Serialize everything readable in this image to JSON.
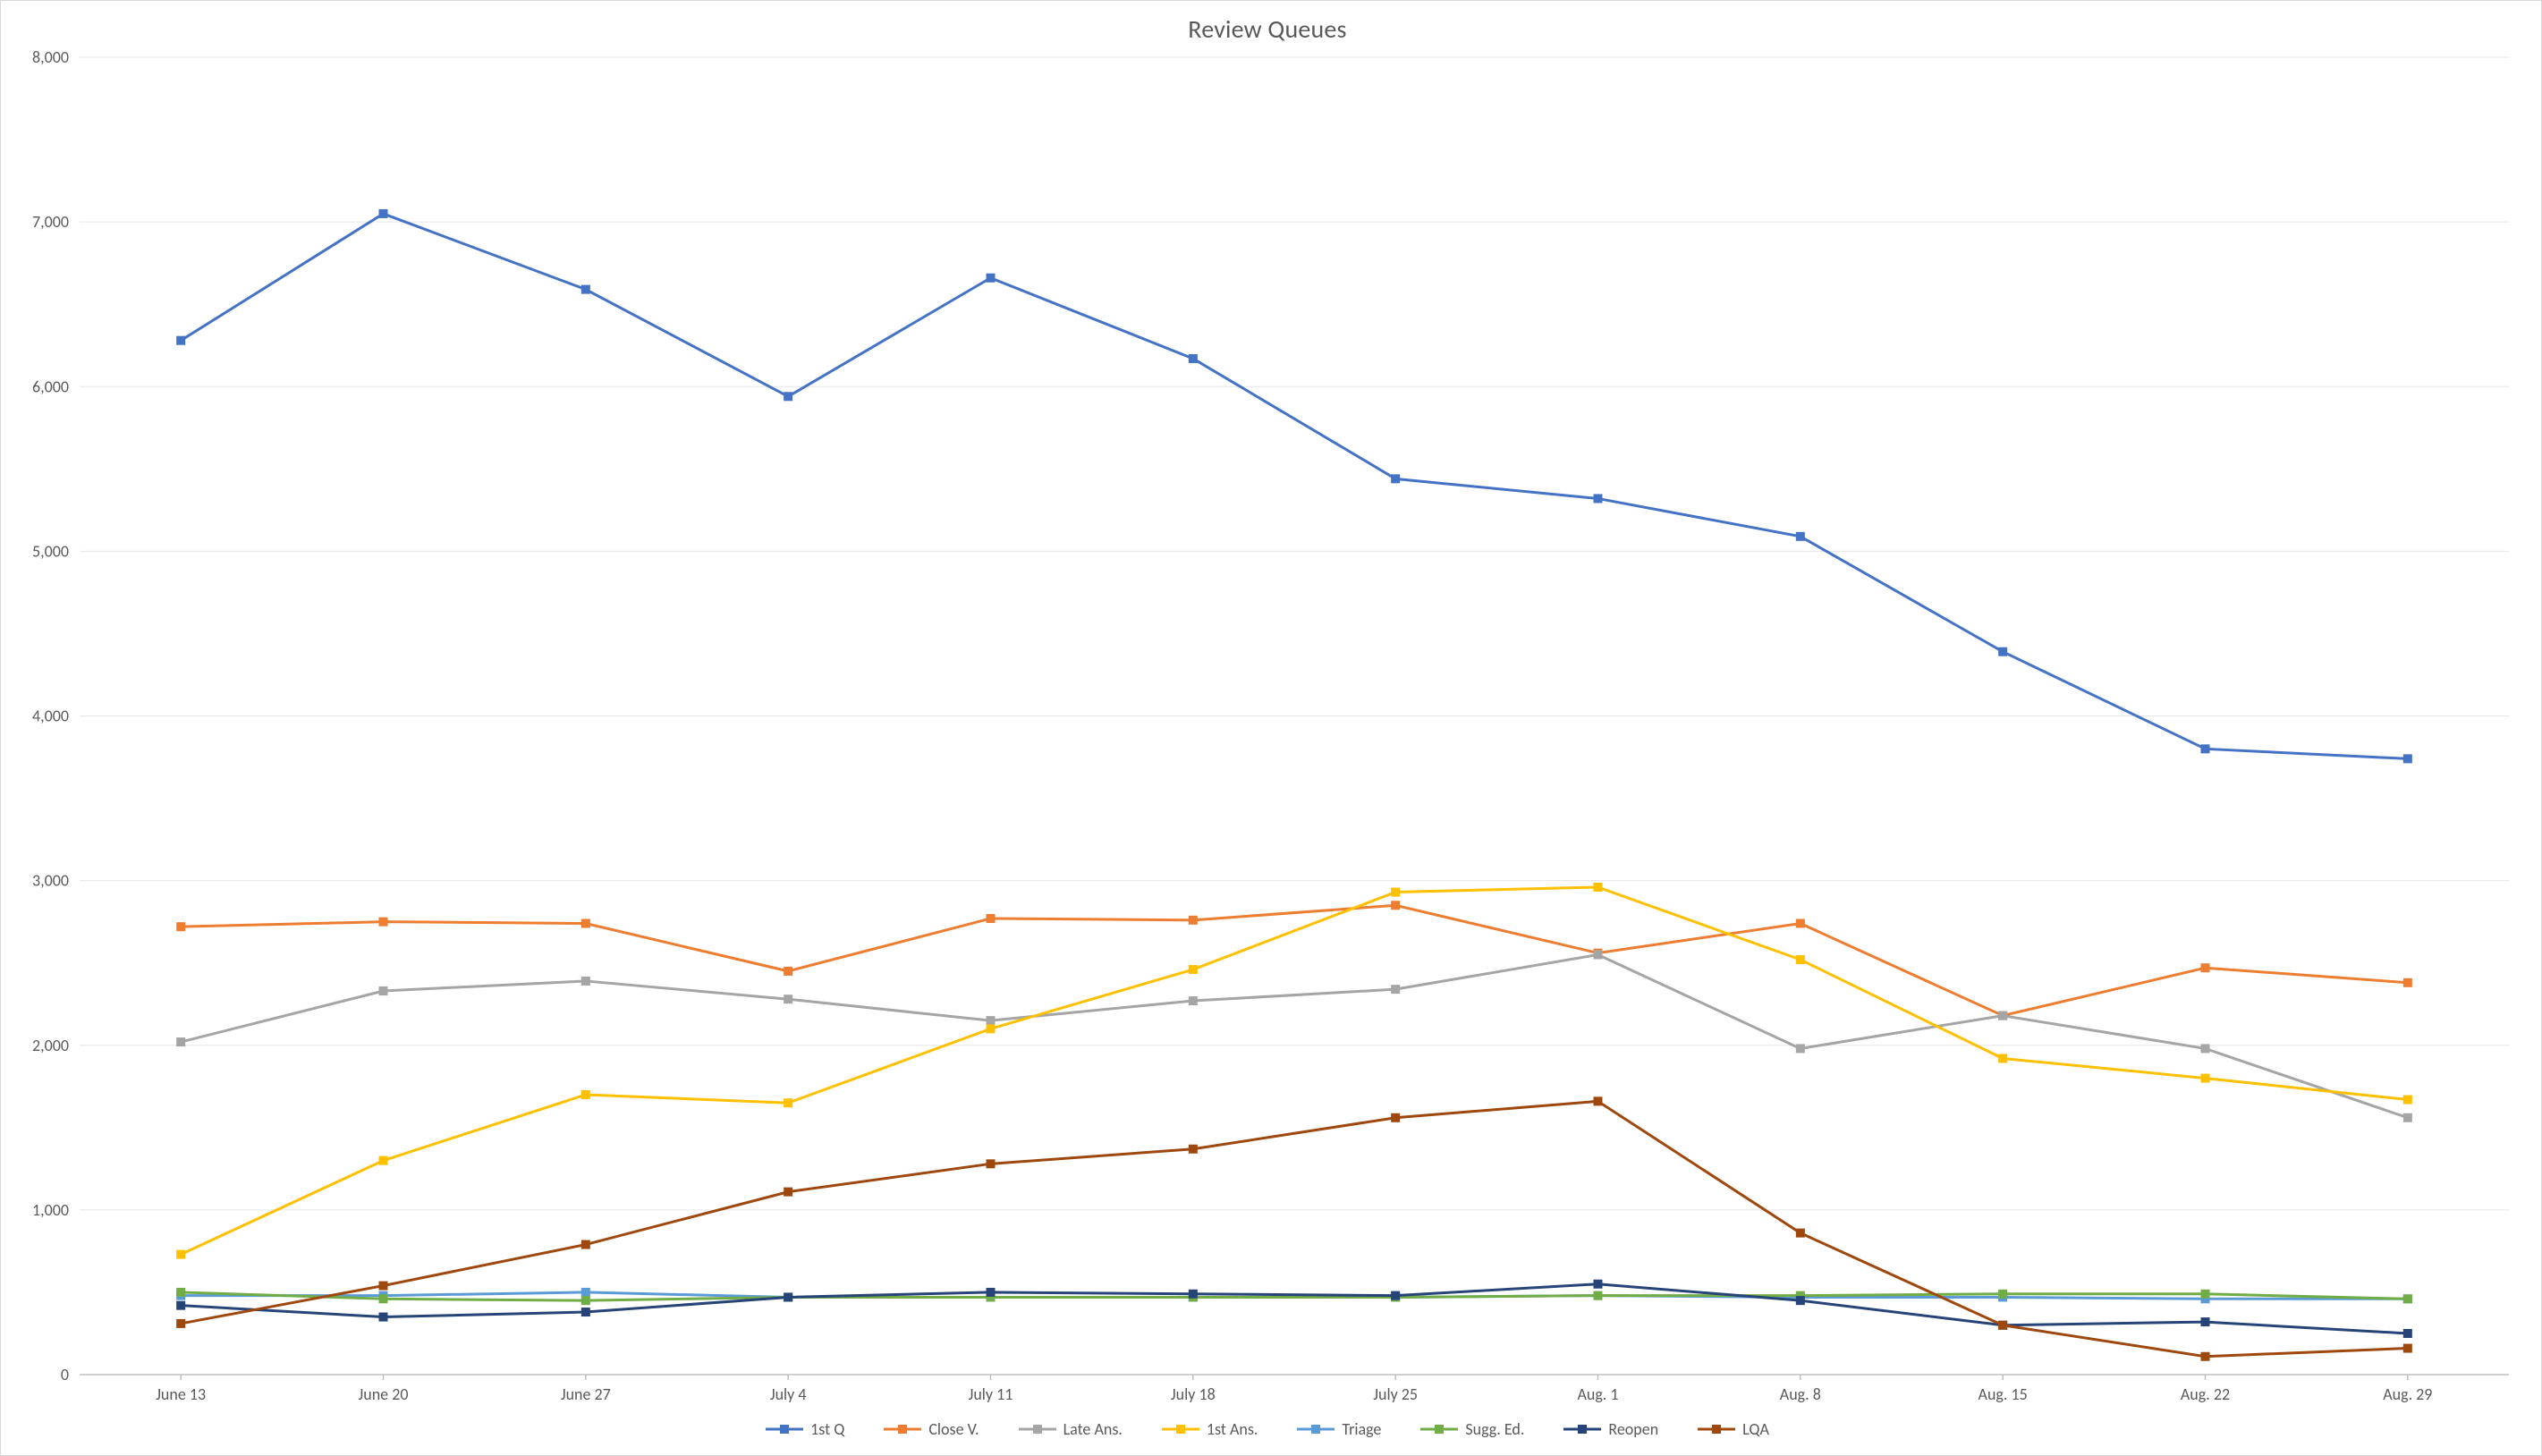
{
  "chart": {
    "type": "line",
    "title": "Review Queues",
    "title_fontsize": 28,
    "title_color": "#595959",
    "background_color": "#ffffff",
    "border_color": "#d9d9d9",
    "grid_color": "#e6e6e6",
    "baseline_color": "#bfbfbf",
    "tick_label_color": "#595959",
    "tick_label_fontsize": 18,
    "line_width": 3,
    "marker_size": 9,
    "marker_shape": "square",
    "categories": [
      "June 13",
      "June 20",
      "June 27",
      "July 4",
      "July 11",
      "July 18",
      "July 25",
      "Aug. 1",
      "Aug. 8",
      "Aug. 15",
      "Aug. 22",
      "Aug. 29"
    ],
    "y": {
      "min": 0,
      "max": 8000,
      "tick_step": 1000,
      "label_format": "thousands_comma"
    },
    "legend": {
      "position": "bottom",
      "fontsize": 18,
      "color": "#595959"
    },
    "series": [
      {
        "key": "first_q",
        "label": "1st Q",
        "color": "#4472c4",
        "values": [
          6280,
          7050,
          6590,
          5940,
          6660,
          6170,
          5440,
          5320,
          5090,
          4390,
          3800,
          3740
        ]
      },
      {
        "key": "close_v",
        "label": "Close V.",
        "color": "#ed7d31",
        "values": [
          2720,
          2750,
          2740,
          2450,
          2770,
          2760,
          2850,
          2560,
          2740,
          2180,
          2470,
          2380
        ]
      },
      {
        "key": "late_ans",
        "label": "Late Ans.",
        "color": "#a5a5a5",
        "values": [
          2020,
          2330,
          2390,
          2280,
          2150,
          2270,
          2340,
          2550,
          1980,
          2180,
          1980,
          1560
        ]
      },
      {
        "key": "first_ans",
        "label": "1st Ans.",
        "color": "#ffc000",
        "values": [
          730,
          1300,
          1700,
          1650,
          2100,
          2460,
          2930,
          2960,
          2520,
          1920,
          1800,
          1670
        ]
      },
      {
        "key": "triage",
        "label": "Triage",
        "color": "#5b9bd5",
        "values": [
          480,
          480,
          500,
          470,
          470,
          470,
          470,
          480,
          470,
          470,
          460,
          460
        ]
      },
      {
        "key": "sugg_ed",
        "label": "Sugg. Ed.",
        "color": "#70ad47",
        "values": [
          500,
          460,
          450,
          470,
          470,
          470,
          470,
          480,
          480,
          490,
          490,
          460
        ]
      },
      {
        "key": "reopen",
        "label": "Reopen",
        "color": "#264478",
        "values": [
          420,
          350,
          380,
          470,
          500,
          490,
          480,
          550,
          450,
          300,
          320,
          250
        ]
      },
      {
        "key": "lqa",
        "label": "LQA",
        "color": "#9e480e",
        "values": [
          310,
          540,
          790,
          1110,
          1280,
          1370,
          1560,
          1660,
          860,
          300,
          110,
          160
        ]
      }
    ]
  }
}
